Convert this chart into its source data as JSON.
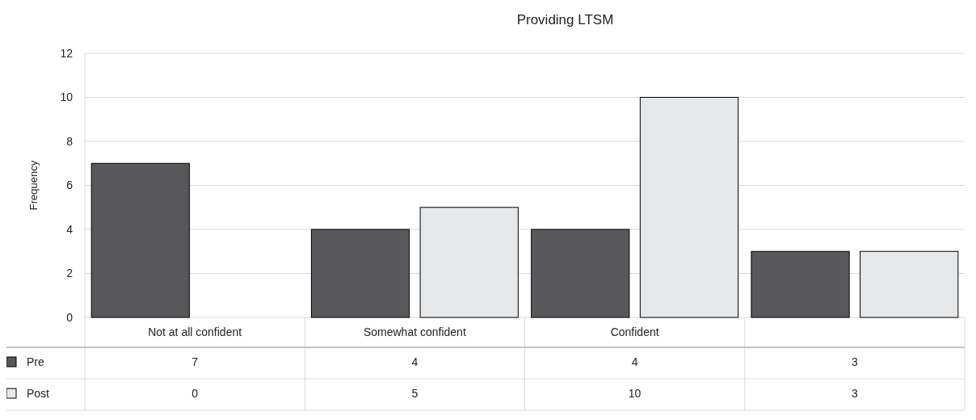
{
  "chart_data": {
    "type": "bar",
    "title": "Providing LTSM",
    "ylabel": "Frequency",
    "categories": [
      "Not at all confident",
      "Somewhat confident",
      "Confident",
      null
    ],
    "series": [
      {
        "name": "Pre",
        "color": "#58585a",
        "values": [
          7,
          4,
          4,
          3
        ]
      },
      {
        "name": "Post",
        "color": "#e6e7e8",
        "values": [
          0,
          5,
          10,
          3
        ]
      }
    ],
    "ylim": [
      0,
      12
    ],
    "yticks": [
      0,
      2,
      4,
      6,
      8,
      10,
      12
    ],
    "grid": "y",
    "legend": "bottom",
    "data_labels": true
  }
}
